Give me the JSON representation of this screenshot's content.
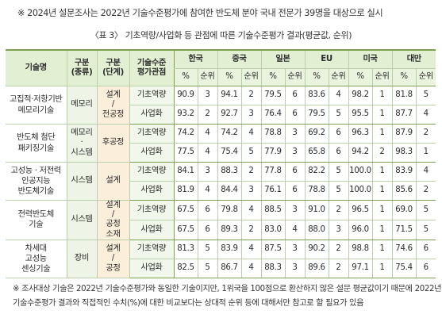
{
  "top_note": "※ 2024년 설문조사는 2022년 기술수준평가에 참여한 반도체 분야 국내 전문가 39명을 대상으로 실시",
  "caption": "〈표 3〉 기초역량/사업화 등 관점에 따른 기술수준평가 결과(평균값, 순위)",
  "headers": {
    "tech": "기술명",
    "cat1_line1": "구분",
    "cat1_line2": "(종류)",
    "cat2_line1": "구분",
    "cat2_line2": "(단계)",
    "axis_line1": "기술수준",
    "axis_line2": "평가관점",
    "countries": [
      "한국",
      "중국",
      "일본",
      "EU",
      "미국",
      "대만"
    ],
    "pct": "%",
    "rank": "순위"
  },
  "groups": [
    {
      "tech_lines": [
        "고집적·저항기반",
        "메모리기술"
      ],
      "cat1_lines": [
        "메모리"
      ],
      "cat2_lines": [
        "설계",
        "/",
        "전공정"
      ],
      "rows": [
        {
          "axis": "기초역량",
          "values": [
            [
              "90.9",
              "3"
            ],
            [
              "94.1",
              "2"
            ],
            [
              "79.5",
              "6"
            ],
            [
              "83.6",
              "4"
            ],
            [
              "98.2",
              "1"
            ],
            [
              "81.8",
              "5"
            ]
          ]
        },
        {
          "axis": "사업화",
          "values": [
            [
              "93.2",
              "2"
            ],
            [
              "92.7",
              "3"
            ],
            [
              "76.4",
              "6"
            ],
            [
              "79.5",
              "5"
            ],
            [
              "95.5",
              "1"
            ],
            [
              "87.7",
              "4"
            ]
          ]
        }
      ]
    },
    {
      "tech_lines": [
        "반도체 첨단",
        "패키징기술"
      ],
      "cat1_lines": [
        "메모리",
        "·",
        "시스템"
      ],
      "cat2_lines": [
        "후공정"
      ],
      "rows": [
        {
          "axis": "기초역량",
          "values": [
            [
              "74.2",
              "4"
            ],
            [
              "74.2",
              "4"
            ],
            [
              "78.8",
              "3"
            ],
            [
              "69.2",
              "6"
            ],
            [
              "96.3",
              "1"
            ],
            [
              "87.9",
              "2"
            ]
          ]
        },
        {
          "axis": "사업화",
          "values": [
            [
              "77.5",
              "4"
            ],
            [
              "75.4",
              "5"
            ],
            [
              "77.9",
              "3"
            ],
            [
              "65.8",
              "6"
            ],
            [
              "94.2",
              "2"
            ],
            [
              "98.3",
              "1"
            ]
          ]
        }
      ]
    },
    {
      "tech_lines": [
        "고성능 · 저전력",
        "인공지능",
        "반도체기술"
      ],
      "cat1_lines": [
        "시스템"
      ],
      "cat2_lines": [
        "설계"
      ],
      "rows": [
        {
          "axis": "기초역량",
          "values": [
            [
              "84.1",
              "3"
            ],
            [
              "88.3",
              "2"
            ],
            [
              "77.8",
              "6"
            ],
            [
              "82.2",
              "5"
            ],
            [
              "100.0",
              "1"
            ],
            [
              "83.9",
              "4"
            ]
          ]
        },
        {
          "axis": "사업화",
          "values": [
            [
              "81.9",
              "4"
            ],
            [
              "84.4",
              "3"
            ],
            [
              "76.1",
              "6"
            ],
            [
              "78.8",
              "5"
            ],
            [
              "100.0",
              "1"
            ],
            [
              "85.6",
              "2"
            ]
          ]
        }
      ]
    },
    {
      "tech_lines": [
        "전력반도체",
        "기술"
      ],
      "cat1_lines": [
        "시스템"
      ],
      "cat2_lines": [
        "설계",
        "/",
        "공정",
        "소재"
      ],
      "rows": [
        {
          "axis": "기초역량",
          "values": [
            [
              "67.5",
              "6"
            ],
            [
              "79.8",
              "4"
            ],
            [
              "88.5",
              "3"
            ],
            [
              "91.0",
              "2"
            ],
            [
              "96.5",
              "1"
            ],
            [
              "69.0",
              "5"
            ]
          ]
        },
        {
          "axis": "사업화",
          "values": [
            [
              "67.5",
              "6"
            ],
            [
              "89.3",
              "2"
            ],
            [
              "83.0",
              "4"
            ],
            [
              "88.0",
              "3"
            ],
            [
              "96.0",
              "1"
            ],
            [
              "71.5",
              "5"
            ]
          ]
        }
      ]
    },
    {
      "tech_lines": [
        "차세대",
        "고성능",
        "센싱기술"
      ],
      "cat1_lines": [
        "장비"
      ],
      "cat2_lines": [
        "설계",
        "/",
        "공정"
      ],
      "rows": [
        {
          "axis": "기초역량",
          "values": [
            [
              "81.3",
              "5"
            ],
            [
              "83.9",
              "4"
            ],
            [
              "87.5",
              "3"
            ],
            [
              "90.2",
              "2"
            ],
            [
              "98.8",
              "1"
            ],
            [
              "74.6",
              "6"
            ]
          ]
        },
        {
          "axis": "사업화",
          "values": [
            [
              "82.5",
              "5"
            ],
            [
              "86.7",
              "4"
            ],
            [
              "88.3",
              "3"
            ],
            [
              "89.6",
              "2"
            ],
            [
              "97.1",
              "1"
            ],
            [
              "75.4",
              "6"
            ]
          ]
        }
      ]
    }
  ],
  "bottom_note_lines": [
    "※ 조사대상 기술은 2022년 기술수준평가와 동일한 기술이지만, 1위국을 100점으로 환산하지 않은 설문 평균값이기 때문에 2022년",
    "기술수준평가 결과와 직접적인 수치(%)에 대한 비교보다는 상대적 순위 등에 대해서만 참고로 할 필요가 있음"
  ]
}
